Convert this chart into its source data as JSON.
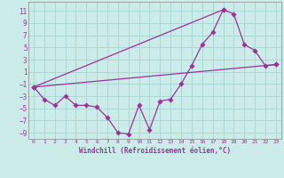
{
  "xlabel": "Windchill (Refroidissement éolien,°C)",
  "background_color": "#ccecea",
  "grid_color": "#aad8d5",
  "line_color": "#993399",
  "xlim": [
    -0.5,
    23.5
  ],
  "ylim": [
    -10,
    12.5
  ],
  "yticks": [
    -9,
    -7,
    -5,
    -3,
    -1,
    1,
    3,
    5,
    7,
    9,
    11
  ],
  "xticks": [
    0,
    1,
    2,
    3,
    4,
    5,
    6,
    7,
    8,
    9,
    10,
    11,
    12,
    13,
    14,
    15,
    16,
    17,
    18,
    19,
    20,
    21,
    22,
    23
  ],
  "series1_x": [
    0,
    1,
    2,
    3,
    4,
    5,
    6,
    7,
    8,
    9,
    10,
    11,
    12,
    13,
    14,
    15,
    16,
    17,
    18,
    19,
    20,
    21,
    22,
    23
  ],
  "series1_y": [
    -1.5,
    -3.5,
    -4.5,
    -3.0,
    -4.5,
    -4.5,
    -4.8,
    -6.5,
    -9.0,
    -9.2,
    -4.5,
    -8.5,
    -3.8,
    -3.5,
    -1.0,
    2.0,
    5.5,
    7.5,
    11.2,
    10.5,
    5.5,
    4.5,
    2.0,
    2.2
  ],
  "series2_x": [
    0,
    23
  ],
  "series2_y": [
    -1.5,
    2.2
  ],
  "series3_x": [
    0,
    18
  ],
  "series3_y": [
    -1.5,
    11.2
  ]
}
